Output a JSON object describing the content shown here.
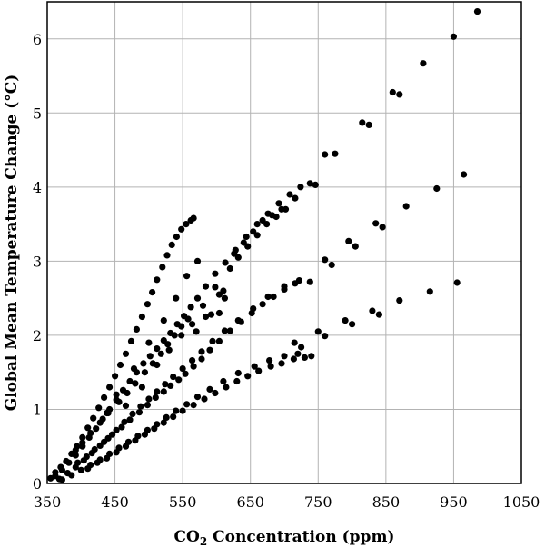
{
  "chart_data": {
    "type": "scatter",
    "xlabel_main": "CO",
    "xlabel_sub": "2",
    "xlabel_rest": " Concentration  (ppm)",
    "ylabel": "Global Mean Temperature Change (°C)",
    "xlim": [
      350,
      1050
    ],
    "ylim": [
      0,
      6.5
    ],
    "xticks": [
      350,
      450,
      550,
      650,
      750,
      850,
      950,
      1050
    ],
    "yticks": [
      0,
      1,
      2,
      3,
      4,
      5,
      6
    ],
    "grid": true,
    "marker_color": "#000000",
    "grid_color": "#b3b3b3",
    "series": [
      {
        "points": [
          [
            355,
            0.07
          ],
          [
            362,
            0.15
          ],
          [
            370,
            0.22
          ],
          [
            378,
            0.3
          ],
          [
            386,
            0.4
          ],
          [
            394,
            0.5
          ],
          [
            402,
            0.62
          ],
          [
            410,
            0.75
          ],
          [
            418,
            0.88
          ],
          [
            426,
            1.02
          ],
          [
            434,
            1.16
          ],
          [
            442,
            1.3
          ],
          [
            450,
            1.45
          ],
          [
            458,
            1.6
          ],
          [
            466,
            1.75
          ],
          [
            474,
            1.92
          ],
          [
            482,
            2.08
          ],
          [
            490,
            2.25
          ],
          [
            498,
            2.42
          ],
          [
            505,
            2.58
          ],
          [
            512,
            2.75
          ],
          [
            520,
            2.92
          ],
          [
            527,
            3.08
          ],
          [
            534,
            3.22
          ],
          [
            541,
            3.33
          ],
          [
            548,
            3.43
          ],
          [
            555,
            3.5
          ],
          [
            562,
            3.55
          ],
          [
            566,
            3.58
          ]
        ]
      },
      {
        "points": [
          [
            362,
            0.1
          ],
          [
            372,
            0.18
          ],
          [
            382,
            0.28
          ],
          [
            392,
            0.38
          ],
          [
            402,
            0.5
          ],
          [
            412,
            0.62
          ],
          [
            422,
            0.74
          ],
          [
            432,
            0.87
          ],
          [
            442,
            1.0
          ],
          [
            452,
            1.13
          ],
          [
            462,
            1.26
          ],
          [
            472,
            1.38
          ],
          [
            482,
            1.5
          ],
          [
            492,
            1.62
          ],
          [
            502,
            1.72
          ],
          [
            512,
            1.82
          ],
          [
            522,
            1.93
          ],
          [
            532,
            2.03
          ],
          [
            542,
            2.15
          ],
          [
            552,
            2.26
          ],
          [
            562,
            2.38
          ],
          [
            572,
            2.5
          ],
          [
            584,
            2.66
          ],
          [
            598,
            2.83
          ],
          [
            613,
            2.98
          ],
          [
            628,
            3.15
          ],
          [
            644,
            3.33
          ],
          [
            660,
            3.5
          ],
          [
            676,
            3.64
          ],
          [
            692,
            3.78
          ],
          [
            708,
            3.9
          ],
          [
            724,
            4.0
          ],
          [
            738,
            4.05
          ]
        ]
      },
      {
        "points": [
          [
            368,
            0.06
          ],
          [
            380,
            0.14
          ],
          [
            392,
            0.22
          ],
          [
            404,
            0.31
          ],
          [
            416,
            0.41
          ],
          [
            428,
            0.51
          ],
          [
            440,
            0.61
          ],
          [
            452,
            0.72
          ],
          [
            464,
            0.83
          ],
          [
            476,
            0.94
          ],
          [
            488,
            1.04
          ],
          [
            500,
            1.14
          ],
          [
            512,
            1.24
          ],
          [
            524,
            1.34
          ],
          [
            536,
            1.44
          ],
          [
            550,
            1.55
          ],
          [
            564,
            1.66
          ],
          [
            578,
            1.78
          ],
          [
            594,
            1.92
          ],
          [
            612,
            2.06
          ],
          [
            632,
            2.2
          ],
          [
            654,
            2.36
          ],
          [
            676,
            2.52
          ],
          [
            700,
            2.66
          ],
          [
            722,
            2.74
          ],
          [
            738,
            2.72
          ]
        ]
      },
      {
        "points": [
          [
            372,
            0.05
          ],
          [
            386,
            0.11
          ],
          [
            400,
            0.18
          ],
          [
            414,
            0.25
          ],
          [
            428,
            0.32
          ],
          [
            442,
            0.4
          ],
          [
            456,
            0.48
          ],
          [
            470,
            0.56
          ],
          [
            484,
            0.64
          ],
          [
            498,
            0.72
          ],
          [
            512,
            0.8
          ],
          [
            526,
            0.89
          ],
          [
            540,
            0.98
          ],
          [
            556,
            1.07
          ],
          [
            572,
            1.17
          ],
          [
            590,
            1.27
          ],
          [
            610,
            1.38
          ],
          [
            632,
            1.49
          ],
          [
            656,
            1.58
          ],
          [
            678,
            1.66
          ],
          [
            700,
            1.72
          ],
          [
            720,
            1.75
          ],
          [
            740,
            1.72
          ]
        ]
      },
      {
        "points": [
          [
            392,
            0.45
          ],
          [
            402,
            0.55
          ],
          [
            414,
            0.68
          ],
          [
            428,
            0.82
          ],
          [
            440,
            0.95
          ],
          [
            456,
            1.1
          ],
          [
            468,
            1.22
          ],
          [
            480,
            1.35
          ],
          [
            494,
            1.5
          ],
          [
            506,
            1.62
          ],
          [
            518,
            1.75
          ],
          [
            528,
            1.88
          ],
          [
            538,
            2.0
          ],
          [
            548,
            2.12
          ],
          [
            558,
            2.22
          ],
          [
            570,
            2.05
          ],
          [
            580,
            2.4
          ],
          [
            592,
            2.28
          ],
          [
            604,
            2.55
          ],
          [
            610,
            2.6
          ],
          [
            604,
            2.3
          ],
          [
            620,
            2.9
          ],
          [
            632,
            3.05
          ],
          [
            646,
            3.2
          ],
          [
            660,
            3.35
          ],
          [
            674,
            3.5
          ],
          [
            688,
            3.6
          ],
          [
            702,
            3.7
          ],
          [
            716,
            3.85
          ],
          [
            746,
            4.03
          ]
        ]
      },
      {
        "points": [
          [
            395,
            0.28
          ],
          [
            408,
            0.36
          ],
          [
            420,
            0.46
          ],
          [
            434,
            0.56
          ],
          [
            446,
            0.66
          ],
          [
            460,
            0.76
          ],
          [
            472,
            0.86
          ],
          [
            486,
            0.96
          ],
          [
            498,
            1.06
          ],
          [
            510,
            1.16
          ],
          [
            522,
            1.24
          ],
          [
            532,
            1.32
          ],
          [
            544,
            1.4
          ],
          [
            554,
            1.48
          ],
          [
            566,
            1.58
          ],
          [
            578,
            1.68
          ],
          [
            590,
            1.8
          ],
          [
            604,
            1.92
          ],
          [
            620,
            2.06
          ],
          [
            636,
            2.18
          ],
          [
            652,
            2.3
          ],
          [
            668,
            2.42
          ],
          [
            684,
            2.52
          ],
          [
            700,
            2.62
          ],
          [
            716,
            2.7
          ]
        ]
      },
      {
        "points": [
          [
            410,
            0.2
          ],
          [
            424,
            0.28
          ],
          [
            438,
            0.34
          ],
          [
            452,
            0.42
          ],
          [
            466,
            0.5
          ],
          [
            480,
            0.58
          ],
          [
            494,
            0.66
          ],
          [
            508,
            0.74
          ],
          [
            522,
            0.82
          ],
          [
            536,
            0.9
          ],
          [
            550,
            0.98
          ],
          [
            566,
            1.06
          ],
          [
            582,
            1.14
          ],
          [
            598,
            1.22
          ],
          [
            614,
            1.3
          ],
          [
            630,
            1.38
          ],
          [
            646,
            1.45
          ],
          [
            662,
            1.52
          ],
          [
            680,
            1.58
          ],
          [
            696,
            1.62
          ],
          [
            714,
            1.68
          ],
          [
            730,
            1.7
          ]
        ]
      },
      {
        "points": [
          [
            438,
            0.95
          ],
          [
            452,
            1.2
          ],
          [
            466,
            1.05
          ],
          [
            478,
            1.55
          ],
          [
            490,
            1.3
          ],
          [
            500,
            1.9
          ],
          [
            512,
            1.6
          ],
          [
            522,
            2.2
          ],
          [
            530,
            1.8
          ],
          [
            540,
            2.5
          ],
          [
            548,
            2.0
          ],
          [
            556,
            2.8
          ],
          [
            564,
            2.15
          ],
          [
            572,
            3.0
          ],
          [
            584,
            2.25
          ],
          [
            598,
            2.65
          ],
          [
            612,
            2.5
          ],
          [
            626,
            3.1
          ],
          [
            640,
            3.25
          ],
          [
            654,
            3.4
          ],
          [
            668,
            3.55
          ],
          [
            682,
            3.62
          ],
          [
            696,
            3.7
          ]
        ]
      },
      {
        "points": [
          [
            760,
            4.44
          ],
          [
            775,
            4.45
          ],
          [
            815,
            4.87
          ],
          [
            825,
            4.84
          ],
          [
            860,
            5.28
          ],
          [
            870,
            5.25
          ],
          [
            905,
            5.67
          ],
          [
            950,
            6.03
          ],
          [
            985,
            6.37
          ],
          [
            760,
            3.02
          ],
          [
            770,
            2.95
          ],
          [
            795,
            3.27
          ],
          [
            805,
            3.2
          ],
          [
            835,
            3.51
          ],
          [
            845,
            3.46
          ],
          [
            880,
            3.74
          ],
          [
            925,
            3.98
          ],
          [
            965,
            4.17
          ],
          [
            750,
            2.05
          ],
          [
            760,
            1.99
          ],
          [
            790,
            2.2
          ],
          [
            800,
            2.15
          ],
          [
            830,
            2.33
          ],
          [
            840,
            2.28
          ],
          [
            870,
            2.47
          ],
          [
            915,
            2.59
          ],
          [
            955,
            2.71
          ],
          [
            715,
            1.9
          ],
          [
            725,
            1.84
          ]
        ]
      }
    ]
  }
}
